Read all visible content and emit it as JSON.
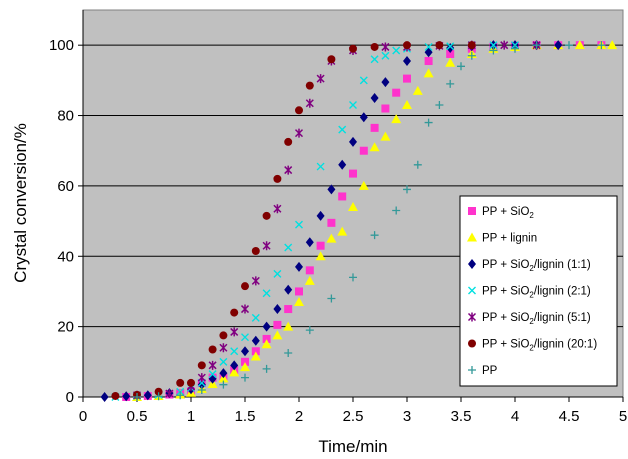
{
  "chart_data": {
    "type": "scatter",
    "xlabel": "Time/min",
    "ylabel": "Crystal conversion/%",
    "xlim": [
      0,
      5
    ],
    "ylim": [
      0,
      110
    ],
    "xticks": [
      "0",
      "0.5",
      "1",
      "1.5",
      "2",
      "2.5",
      "3",
      "3.5",
      "4",
      "4.5",
      "5"
    ],
    "yticks": [
      "0",
      "20",
      "40",
      "60",
      "80",
      "100"
    ],
    "plot_background": "#c0c0c0",
    "grid": "horizontal",
    "legend_position": "lower-right",
    "series": [
      {
        "name": "PP + SiO",
        "name_subscript": "2",
        "name_suffix": "",
        "marker": "square",
        "color": "#ff33cc",
        "points": [
          [
            0.4,
            0
          ],
          [
            0.6,
            0.3
          ],
          [
            0.8,
            0.7
          ],
          [
            0.9,
            1.1
          ],
          [
            1.0,
            1.6
          ],
          [
            1.1,
            4
          ],
          [
            1.2,
            5.5
          ],
          [
            1.3,
            5.5
          ],
          [
            1.4,
            7.7
          ],
          [
            1.5,
            10
          ],
          [
            1.6,
            13
          ],
          [
            1.7,
            16.5
          ],
          [
            1.8,
            20.5
          ],
          [
            1.9,
            25
          ],
          [
            2.0,
            30
          ],
          [
            2.1,
            36
          ],
          [
            2.2,
            43
          ],
          [
            2.3,
            49.5
          ],
          [
            2.4,
            57
          ],
          [
            2.5,
            63.5
          ],
          [
            2.6,
            70
          ],
          [
            2.7,
            76.5
          ],
          [
            2.8,
            82
          ],
          [
            2.9,
            86.5
          ],
          [
            3.0,
            90.5
          ],
          [
            3.2,
            95.5
          ],
          [
            3.4,
            97.5
          ],
          [
            3.6,
            99
          ],
          [
            3.8,
            99.5
          ],
          [
            4.0,
            99.8
          ],
          [
            4.2,
            100
          ],
          [
            4.4,
            100
          ],
          [
            4.6,
            100
          ],
          [
            4.8,
            100
          ]
        ]
      },
      {
        "name": "PP + lignin",
        "name_subscript": "",
        "name_suffix": "",
        "marker": "triangle",
        "color": "#ffff00",
        "points": [
          [
            0.5,
            0
          ],
          [
            0.7,
            0.3
          ],
          [
            0.9,
            0.7
          ],
          [
            1.0,
            1.2
          ],
          [
            1.1,
            2.3
          ],
          [
            1.2,
            3.7
          ],
          [
            1.3,
            5.3
          ],
          [
            1.4,
            7
          ],
          [
            1.5,
            8.5
          ],
          [
            1.6,
            11.5
          ],
          [
            1.7,
            15
          ],
          [
            1.8,
            17.5
          ],
          [
            1.9,
            20
          ],
          [
            2.0,
            27
          ],
          [
            2.1,
            33
          ],
          [
            2.2,
            40
          ],
          [
            2.3,
            45
          ],
          [
            2.4,
            47
          ],
          [
            2.5,
            54
          ],
          [
            2.6,
            60
          ],
          [
            2.7,
            71
          ],
          [
            2.8,
            74
          ],
          [
            2.9,
            79
          ],
          [
            3.0,
            83
          ],
          [
            3.1,
            87
          ],
          [
            3.2,
            92
          ],
          [
            3.4,
            95
          ],
          [
            3.6,
            97.5
          ],
          [
            3.8,
            99
          ],
          [
            4.0,
            99.5
          ],
          [
            4.2,
            100
          ],
          [
            4.4,
            100
          ],
          [
            4.6,
            100
          ],
          [
            4.8,
            100
          ],
          [
            4.9,
            100
          ]
        ]
      },
      {
        "name": "PP + SiO",
        "name_subscript": "2",
        "name_suffix": "/lignin (1:1)",
        "marker": "diamond",
        "color": "#000080",
        "points": [
          [
            0.2,
            0
          ],
          [
            0.4,
            0.2
          ],
          [
            0.6,
            0.5
          ],
          [
            0.8,
            1.1
          ],
          [
            1.0,
            2.2
          ],
          [
            1.1,
            3.5
          ],
          [
            1.2,
            5.2
          ],
          [
            1.3,
            6.8
          ],
          [
            1.4,
            9
          ],
          [
            1.5,
            13
          ],
          [
            1.6,
            16
          ],
          [
            1.7,
            20
          ],
          [
            1.8,
            25
          ],
          [
            1.9,
            30.5
          ],
          [
            2.0,
            37
          ],
          [
            2.1,
            44
          ],
          [
            2.2,
            51.5
          ],
          [
            2.3,
            59
          ],
          [
            2.4,
            66
          ],
          [
            2.5,
            72.5
          ],
          [
            2.6,
            79.5
          ],
          [
            2.7,
            85
          ],
          [
            2.8,
            89.5
          ],
          [
            3.0,
            95.5
          ],
          [
            3.2,
            98
          ],
          [
            3.4,
            99.2
          ],
          [
            3.6,
            99.7
          ],
          [
            3.8,
            100
          ],
          [
            4.0,
            100
          ],
          [
            4.2,
            100
          ],
          [
            4.4,
            100
          ]
        ]
      },
      {
        "name": "PP + SiO",
        "name_subscript": "2",
        "name_suffix": "/lignin (2:1)",
        "marker": "x",
        "color": "#00e0e0",
        "points": [
          [
            0.3,
            0
          ],
          [
            0.5,
            0.3
          ],
          [
            0.7,
            0.6
          ],
          [
            0.9,
            1.5
          ],
          [
            1.0,
            2.6
          ],
          [
            1.1,
            4
          ],
          [
            1.2,
            6.5
          ],
          [
            1.3,
            10
          ],
          [
            1.4,
            13
          ],
          [
            1.5,
            17
          ],
          [
            1.6,
            22.5
          ],
          [
            1.7,
            29.5
          ],
          [
            1.8,
            35
          ],
          [
            1.9,
            42.5
          ],
          [
            2.0,
            49
          ],
          [
            2.2,
            65.5
          ],
          [
            2.4,
            76
          ],
          [
            2.5,
            83
          ],
          [
            2.6,
            90
          ],
          [
            2.7,
            96
          ],
          [
            2.8,
            97
          ],
          [
            2.9,
            98.5
          ],
          [
            3.0,
            99
          ],
          [
            3.2,
            99.5
          ],
          [
            3.4,
            99.7
          ],
          [
            3.6,
            100
          ],
          [
            3.8,
            100
          ],
          [
            4.0,
            100
          ]
        ]
      },
      {
        "name": "PP + SiO",
        "name_subscript": "2",
        "name_suffix": "/lignin (5:1)",
        "marker": "asterisk",
        "color": "#800080",
        "points": [
          [
            0.5,
            0.5
          ],
          [
            0.8,
            1
          ],
          [
            1.0,
            3
          ],
          [
            1.1,
            5.5
          ],
          [
            1.2,
            9
          ],
          [
            1.3,
            14
          ],
          [
            1.4,
            18.5
          ],
          [
            1.5,
            25
          ],
          [
            1.6,
            33
          ],
          [
            1.7,
            43
          ],
          [
            1.8,
            53.5
          ],
          [
            1.9,
            64.5
          ],
          [
            2.0,
            75
          ],
          [
            2.1,
            83.5
          ],
          [
            2.2,
            90.5
          ],
          [
            2.3,
            95.5
          ],
          [
            2.5,
            98.5
          ],
          [
            2.8,
            99.5
          ],
          [
            3.0,
            99.5
          ],
          [
            3.3,
            99.8
          ],
          [
            3.6,
            100
          ],
          [
            3.9,
            100
          ],
          [
            4.2,
            100
          ]
        ]
      },
      {
        "name": "PP + SiO",
        "name_subscript": "2",
        "name_suffix": "/lignin (20:1)",
        "marker": "circle",
        "color": "#800000",
        "points": [
          [
            0.3,
            0.3
          ],
          [
            0.5,
            0.6
          ],
          [
            0.7,
            1.5
          ],
          [
            0.9,
            4
          ],
          [
            1.0,
            4
          ],
          [
            1.1,
            9
          ],
          [
            1.2,
            13.5
          ],
          [
            1.3,
            17.5
          ],
          [
            1.4,
            24
          ],
          [
            1.5,
            31.5
          ],
          [
            1.6,
            41.5
          ],
          [
            1.7,
            51.5
          ],
          [
            1.8,
            62
          ],
          [
            1.9,
            72.5
          ],
          [
            2.0,
            81.5
          ],
          [
            2.1,
            88.5
          ],
          [
            2.3,
            96
          ],
          [
            2.5,
            99
          ],
          [
            2.7,
            99.5
          ],
          [
            3.0,
            100
          ],
          [
            3.3,
            100
          ],
          [
            3.6,
            100
          ]
        ]
      },
      {
        "name": "PP",
        "name_subscript": "",
        "name_suffix": "",
        "marker": "plus",
        "color": "#339999",
        "points": [
          [
            0.5,
            0
          ],
          [
            0.7,
            0.2
          ],
          [
            0.9,
            0.5
          ],
          [
            1.1,
            2
          ],
          [
            1.3,
            3.5
          ],
          [
            1.5,
            5.5
          ],
          [
            1.7,
            8
          ],
          [
            1.9,
            12.5
          ],
          [
            2.1,
            19
          ],
          [
            2.3,
            28
          ],
          [
            2.5,
            34
          ],
          [
            2.7,
            46
          ],
          [
            2.9,
            53
          ],
          [
            3.0,
            59
          ],
          [
            3.1,
            66
          ],
          [
            3.2,
            78
          ],
          [
            3.3,
            83
          ],
          [
            3.4,
            89
          ],
          [
            3.5,
            94
          ],
          [
            3.6,
            97
          ],
          [
            3.8,
            98.5
          ],
          [
            4.0,
            99
          ],
          [
            4.2,
            100
          ],
          [
            4.5,
            100
          ],
          [
            4.8,
            100
          ]
        ]
      }
    ]
  }
}
